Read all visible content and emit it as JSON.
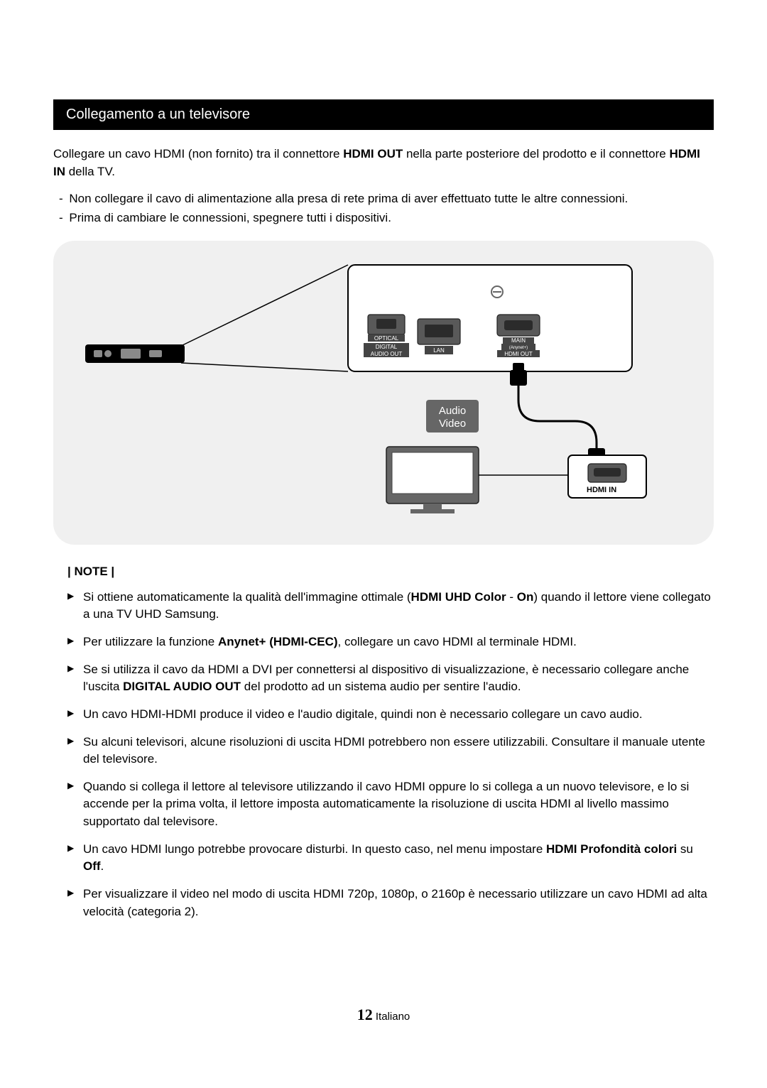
{
  "section_title": "Collegamento a un televisore",
  "intro": {
    "pre": "Collegare un cavo HDMI (non fornito) tra il connettore ",
    "b1": "HDMI OUT",
    "mid": " nella parte posteriore del prodotto e il connettore ",
    "b2": "HDMI IN",
    "post": " della TV."
  },
  "dashes": [
    "Non collegare il cavo di alimentazione alla presa di rete prima di aver effettuato tutte le altre connessioni.",
    "Prima di cambiare le connessioni, spegnere tutti i dispositivi."
  ],
  "diagram": {
    "bg_color": "#f0f0f0",
    "badge_color": "#666666",
    "badge_line1": "Audio",
    "badge_line2": "Video",
    "tv_label": "TV",
    "hdmi_in": "HDMI IN",
    "ports": {
      "optical": "OPTICAL",
      "digital1": "DIGITAL",
      "digital2": "AUDIO OUT",
      "lan": "LAN",
      "main1": "MAIN",
      "main2": "(Anynet+)",
      "hdmi_out": "HDMI OUT"
    }
  },
  "note_label": "| NOTE |",
  "notes": [
    {
      "segments": [
        {
          "t": "Si ottiene automaticamente la qualità dell'immagine ottimale ("
        },
        {
          "t": "HDMI UHD Color",
          "b": true
        },
        {
          "t": " - "
        },
        {
          "t": "On",
          "b": true
        },
        {
          "t": ") quando il lettore viene collegato a una TV UHD Samsung."
        }
      ]
    },
    {
      "segments": [
        {
          "t": "Per utilizzare la funzione "
        },
        {
          "t": "Anynet+ (HDMI-CEC)",
          "b": true
        },
        {
          "t": ", collegare un cavo HDMI al terminale HDMI."
        }
      ]
    },
    {
      "segments": [
        {
          "t": "Se si utilizza il cavo da HDMI a DVI per connettersi al dispositivo di visualizzazione, è necessario collegare anche l'uscita "
        },
        {
          "t": "DIGITAL AUDIO OUT",
          "b": true
        },
        {
          "t": " del prodotto ad un sistema audio per sentire l'audio."
        }
      ]
    },
    {
      "segments": [
        {
          "t": "Un cavo HDMI-HDMI produce il video e l'audio digitale, quindi non è necessario collegare un cavo audio."
        }
      ]
    },
    {
      "segments": [
        {
          "t": "Su alcuni televisori, alcune risoluzioni di uscita HDMI potrebbero non essere utilizzabili. Consultare il manuale utente del televisore."
        }
      ]
    },
    {
      "segments": [
        {
          "t": "Quando si collega il lettore al televisore utilizzando il cavo HDMI oppure lo si collega a un nuovo televisore, e lo si accende per la prima volta, il lettore imposta automaticamente la risoluzione di uscita HDMI al livello massimo supportato dal televisore."
        }
      ]
    },
    {
      "segments": [
        {
          "t": "Un cavo HDMI lungo potrebbe provocare disturbi. In questo caso, nel menu impostare "
        },
        {
          "t": "HDMI Profondità colori",
          "b": true
        },
        {
          "t": " su "
        },
        {
          "t": "Off",
          "b": true
        },
        {
          "t": "."
        }
      ]
    },
    {
      "segments": [
        {
          "t": "Per visualizzare il video nel modo di uscita HDMI 720p, 1080p, o 2160p è necessario utilizzare un cavo HDMI ad alta velocità (categoria 2)."
        }
      ]
    }
  ],
  "footer": {
    "page": "12",
    "lang": "Italiano"
  }
}
